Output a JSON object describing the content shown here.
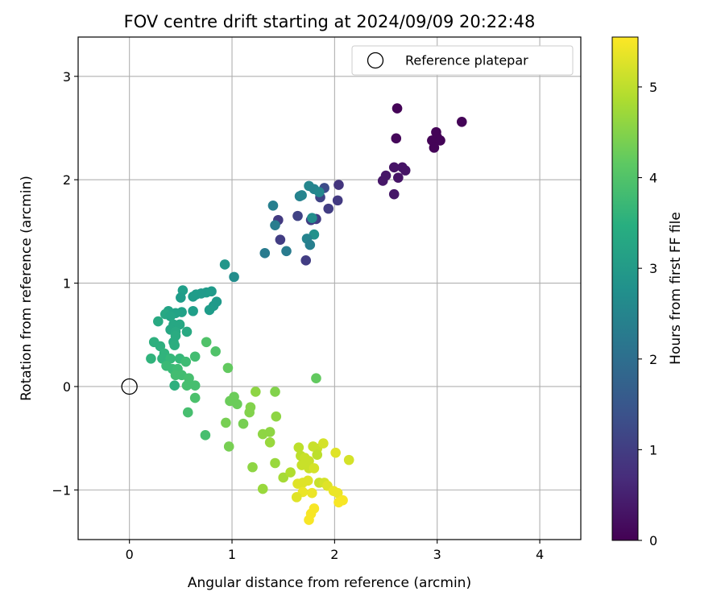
{
  "chart_data": {
    "type": "scatter",
    "title": "FOV centre drift starting at 2024/09/09 20:22:48",
    "xlabel": "Angular distance from reference (arcmin)",
    "ylabel": "Rotation from reference (arcmin)",
    "xlim": [
      -0.5,
      4.4
    ],
    "ylim": [
      -1.48,
      3.38
    ],
    "xticks": [
      0,
      1,
      2,
      3,
      4
    ],
    "yticks": [
      -1,
      0,
      1,
      2,
      3
    ],
    "ytick_labels": [
      "−1",
      "0",
      "1",
      "2",
      "3"
    ],
    "grid": true,
    "legend": {
      "position": "top-right",
      "entries": [
        "Reference platepar"
      ]
    },
    "colorbar": {
      "label": "Hours from first FF file",
      "min": 0,
      "max": 5.55,
      "ticks": [
        0,
        1,
        2,
        3,
        4,
        5
      ],
      "colormap": "viridis"
    },
    "reference_point": {
      "x": 0,
      "y": 0,
      "label": "Reference platepar"
    },
    "points": [
      {
        "x": 2.61,
        "y": 2.69,
        "c": 0.05
      },
      {
        "x": 3.24,
        "y": 2.56,
        "c": 0.05
      },
      {
        "x": 2.99,
        "y": 2.46,
        "c": 0.05
      },
      {
        "x": 3.0,
        "y": 2.41,
        "c": 0.05
      },
      {
        "x": 2.95,
        "y": 2.38,
        "c": 0.05
      },
      {
        "x": 3.03,
        "y": 2.38,
        "c": 0.05
      },
      {
        "x": 2.97,
        "y": 2.31,
        "c": 0.05
      },
      {
        "x": 2.6,
        "y": 2.4,
        "c": 0.1
      },
      {
        "x": 2.58,
        "y": 2.12,
        "c": 0.3
      },
      {
        "x": 2.66,
        "y": 2.12,
        "c": 0.3
      },
      {
        "x": 2.69,
        "y": 2.09,
        "c": 0.3
      },
      {
        "x": 2.5,
        "y": 2.04,
        "c": 0.35
      },
      {
        "x": 2.47,
        "y": 1.99,
        "c": 0.35
      },
      {
        "x": 2.62,
        "y": 2.02,
        "c": 0.3
      },
      {
        "x": 2.58,
        "y": 1.86,
        "c": 0.35
      },
      {
        "x": 2.04,
        "y": 1.95,
        "c": 0.85
      },
      {
        "x": 2.03,
        "y": 1.8,
        "c": 0.95
      },
      {
        "x": 1.9,
        "y": 1.92,
        "c": 1.3
      },
      {
        "x": 1.86,
        "y": 1.83,
        "c": 1.1
      },
      {
        "x": 1.94,
        "y": 1.72,
        "c": 1.0
      },
      {
        "x": 1.82,
        "y": 1.62,
        "c": 1.0
      },
      {
        "x": 1.77,
        "y": 1.61,
        "c": 1.0
      },
      {
        "x": 1.45,
        "y": 1.61,
        "c": 0.95
      },
      {
        "x": 1.47,
        "y": 1.42,
        "c": 1.0
      },
      {
        "x": 1.64,
        "y": 1.65,
        "c": 1.1
      },
      {
        "x": 1.72,
        "y": 1.22,
        "c": 1.0
      },
      {
        "x": 1.75,
        "y": 1.94,
        "c": 2.55
      },
      {
        "x": 1.8,
        "y": 1.91,
        "c": 2.5
      },
      {
        "x": 1.66,
        "y": 1.84,
        "c": 2.45
      },
      {
        "x": 1.68,
        "y": 1.85,
        "c": 2.5
      },
      {
        "x": 1.4,
        "y": 1.75,
        "c": 2.4
      },
      {
        "x": 1.85,
        "y": 1.88,
        "c": 2.6
      },
      {
        "x": 1.42,
        "y": 1.56,
        "c": 2.35
      },
      {
        "x": 1.78,
        "y": 1.63,
        "c": 2.7
      },
      {
        "x": 1.8,
        "y": 1.47,
        "c": 2.8
      },
      {
        "x": 1.73,
        "y": 1.43,
        "c": 2.5
      },
      {
        "x": 1.76,
        "y": 1.37,
        "c": 2.4
      },
      {
        "x": 1.53,
        "y": 1.31,
        "c": 2.3
      },
      {
        "x": 1.32,
        "y": 1.29,
        "c": 2.3
      },
      {
        "x": 0.93,
        "y": 1.18,
        "c": 2.9
      },
      {
        "x": 1.02,
        "y": 1.06,
        "c": 2.7
      },
      {
        "x": 0.8,
        "y": 0.92,
        "c": 3.0
      },
      {
        "x": 0.75,
        "y": 0.91,
        "c": 3.05
      },
      {
        "x": 0.7,
        "y": 0.9,
        "c": 3.0
      },
      {
        "x": 0.65,
        "y": 0.89,
        "c": 3.05
      },
      {
        "x": 0.62,
        "y": 0.87,
        "c": 3.05
      },
      {
        "x": 0.52,
        "y": 0.93,
        "c": 3.1
      },
      {
        "x": 0.5,
        "y": 0.86,
        "c": 3.05
      },
      {
        "x": 0.85,
        "y": 0.82,
        "c": 3.0
      },
      {
        "x": 0.82,
        "y": 0.78,
        "c": 3.0
      },
      {
        "x": 0.78,
        "y": 0.74,
        "c": 3.05
      },
      {
        "x": 0.62,
        "y": 0.73,
        "c": 3.1
      },
      {
        "x": 0.51,
        "y": 0.72,
        "c": 3.15
      },
      {
        "x": 0.45,
        "y": 0.71,
        "c": 3.2
      },
      {
        "x": 0.38,
        "y": 0.73,
        "c": 3.2
      },
      {
        "x": 0.35,
        "y": 0.7,
        "c": 3.3
      },
      {
        "x": 0.4,
        "y": 0.68,
        "c": 3.25
      },
      {
        "x": 0.28,
        "y": 0.63,
        "c": 3.35
      },
      {
        "x": 0.43,
        "y": 0.6,
        "c": 3.3
      },
      {
        "x": 0.49,
        "y": 0.6,
        "c": 3.3
      },
      {
        "x": 0.4,
        "y": 0.55,
        "c": 3.3
      },
      {
        "x": 0.45,
        "y": 0.53,
        "c": 3.35
      },
      {
        "x": 0.56,
        "y": 0.53,
        "c": 3.35
      },
      {
        "x": 0.45,
        "y": 0.49,
        "c": 3.4
      },
      {
        "x": 0.43,
        "y": 0.43,
        "c": 3.4
      },
      {
        "x": 0.44,
        "y": 0.4,
        "c": 3.45
      },
      {
        "x": 0.24,
        "y": 0.43,
        "c": 3.5
      },
      {
        "x": 0.3,
        "y": 0.39,
        "c": 3.5
      },
      {
        "x": 0.34,
        "y": 0.32,
        "c": 3.6
      },
      {
        "x": 0.21,
        "y": 0.27,
        "c": 3.6
      },
      {
        "x": 0.32,
        "y": 0.27,
        "c": 3.6
      },
      {
        "x": 0.4,
        "y": 0.27,
        "c": 3.7
      },
      {
        "x": 0.49,
        "y": 0.27,
        "c": 3.7
      },
      {
        "x": 0.36,
        "y": 0.2,
        "c": 3.75
      },
      {
        "x": 0.42,
        "y": 0.17,
        "c": 3.75
      },
      {
        "x": 0.47,
        "y": 0.17,
        "c": 3.8
      },
      {
        "x": 0.55,
        "y": 0.24,
        "c": 3.8
      },
      {
        "x": 0.64,
        "y": 0.29,
        "c": 3.85
      },
      {
        "x": 0.45,
        "y": 0.11,
        "c": 3.85
      },
      {
        "x": 0.51,
        "y": 0.11,
        "c": 3.85
      },
      {
        "x": 0.58,
        "y": 0.08,
        "c": 3.9
      },
      {
        "x": 0.56,
        "y": 0.01,
        "c": 3.9
      },
      {
        "x": 0.64,
        "y": 0.01,
        "c": 3.9
      },
      {
        "x": 0.44,
        "y": 0.01,
        "c": 3.5
      },
      {
        "x": 0.64,
        "y": -0.11,
        "c": 3.95
      },
      {
        "x": 0.57,
        "y": -0.25,
        "c": 3.9
      },
      {
        "x": 0.75,
        "y": 0.43,
        "c": 4.0
      },
      {
        "x": 0.84,
        "y": 0.34,
        "c": 4.0
      },
      {
        "x": 0.96,
        "y": 0.18,
        "c": 4.2
      },
      {
        "x": 0.74,
        "y": -0.47,
        "c": 3.9
      },
      {
        "x": 1.02,
        "y": -0.1,
        "c": 4.3
      },
      {
        "x": 0.98,
        "y": -0.14,
        "c": 4.3
      },
      {
        "x": 1.05,
        "y": -0.17,
        "c": 4.3
      },
      {
        "x": 0.94,
        "y": -0.35,
        "c": 4.4
      },
      {
        "x": 0.97,
        "y": -0.58,
        "c": 4.4
      },
      {
        "x": 1.11,
        "y": -0.36,
        "c": 4.4
      },
      {
        "x": 1.18,
        "y": -0.2,
        "c": 4.5
      },
      {
        "x": 1.17,
        "y": -0.25,
        "c": 4.5
      },
      {
        "x": 1.23,
        "y": -0.05,
        "c": 4.6
      },
      {
        "x": 1.42,
        "y": -0.05,
        "c": 4.5
      },
      {
        "x": 1.43,
        "y": -0.29,
        "c": 4.6
      },
      {
        "x": 1.82,
        "y": 0.08,
        "c": 4.2
      },
      {
        "x": 1.3,
        "y": -0.46,
        "c": 4.6
      },
      {
        "x": 1.37,
        "y": -0.44,
        "c": 4.6
      },
      {
        "x": 1.37,
        "y": -0.54,
        "c": 4.7
      },
      {
        "x": 1.42,
        "y": -0.74,
        "c": 4.7
      },
      {
        "x": 1.2,
        "y": -0.78,
        "c": 4.6
      },
      {
        "x": 1.3,
        "y": -0.99,
        "c": 4.7
      },
      {
        "x": 1.5,
        "y": -0.88,
        "c": 4.8
      },
      {
        "x": 1.57,
        "y": -0.83,
        "c": 4.9
      },
      {
        "x": 1.65,
        "y": -0.59,
        "c": 5.0
      },
      {
        "x": 1.67,
        "y": -0.67,
        "c": 5.0
      },
      {
        "x": 1.71,
        "y": -0.69,
        "c": 5.1
      },
      {
        "x": 1.75,
        "y": -0.72,
        "c": 5.1
      },
      {
        "x": 1.79,
        "y": -0.58,
        "c": 5.1
      },
      {
        "x": 1.83,
        "y": -0.6,
        "c": 5.1
      },
      {
        "x": 1.83,
        "y": -0.66,
        "c": 5.0
      },
      {
        "x": 1.89,
        "y": -0.55,
        "c": 5.2
      },
      {
        "x": 1.75,
        "y": -0.79,
        "c": 5.1
      },
      {
        "x": 1.68,
        "y": -0.76,
        "c": 5.1
      },
      {
        "x": 1.8,
        "y": -0.79,
        "c": 5.2
      },
      {
        "x": 2.01,
        "y": -0.64,
        "c": 5.3
      },
      {
        "x": 2.14,
        "y": -0.71,
        "c": 5.2
      },
      {
        "x": 1.85,
        "y": -0.93,
        "c": 5.1
      },
      {
        "x": 1.9,
        "y": -0.93,
        "c": 5.2
      },
      {
        "x": 1.93,
        "y": -0.96,
        "c": 5.3
      },
      {
        "x": 1.64,
        "y": -0.94,
        "c": 5.3
      },
      {
        "x": 1.69,
        "y": -0.93,
        "c": 5.3
      },
      {
        "x": 1.74,
        "y": -0.91,
        "c": 5.3
      },
      {
        "x": 1.99,
        "y": -1.01,
        "c": 5.4
      },
      {
        "x": 2.03,
        "y": -1.03,
        "c": 5.4
      },
      {
        "x": 1.69,
        "y": -1.02,
        "c": 5.4
      },
      {
        "x": 1.78,
        "y": -1.03,
        "c": 5.4
      },
      {
        "x": 1.63,
        "y": -1.07,
        "c": 5.3
      },
      {
        "x": 2.04,
        "y": -1.12,
        "c": 5.5
      },
      {
        "x": 2.08,
        "y": -1.1,
        "c": 5.5
      },
      {
        "x": 1.8,
        "y": -1.18,
        "c": 5.5
      },
      {
        "x": 1.77,
        "y": -1.23,
        "c": 5.5
      },
      {
        "x": 1.75,
        "y": -1.29,
        "c": 5.5
      }
    ]
  }
}
